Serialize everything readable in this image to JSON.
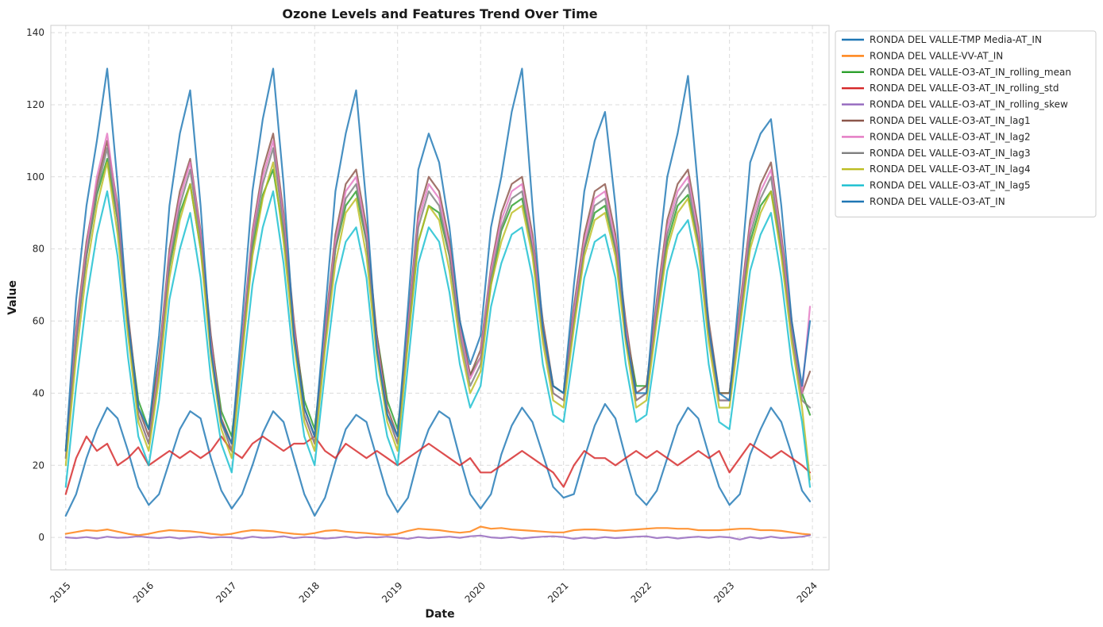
{
  "chart_data": {
    "type": "line",
    "title": "Ozone Levels and Features Trend Over Time",
    "xlabel": "Date",
    "ylabel": "Value",
    "xlim": [
      2014.82,
      2024.2
    ],
    "ylim": [
      -9,
      142
    ],
    "x_ticks": [
      2015,
      2016,
      2017,
      2018,
      2019,
      2020,
      2021,
      2022,
      2023,
      2024
    ],
    "x_tick_labels": [
      "2015",
      "2016",
      "2017",
      "2018",
      "2019",
      "2020",
      "2021",
      "2022",
      "2023",
      "2024"
    ],
    "y_ticks": [
      0,
      20,
      40,
      60,
      80,
      100,
      120,
      140
    ],
    "y_tick_labels": [
      "0",
      "20",
      "40",
      "60",
      "80",
      "100",
      "120",
      "140"
    ],
    "grid": true,
    "legend_position": "outside-top-right",
    "x": [
      2015.0,
      2015.125,
      2015.25,
      2015.375,
      2015.5,
      2015.625,
      2015.75,
      2015.875,
      2016.0,
      2016.125,
      2016.25,
      2016.375,
      2016.5,
      2016.625,
      2016.75,
      2016.875,
      2017.0,
      2017.125,
      2017.25,
      2017.375,
      2017.5,
      2017.625,
      2017.75,
      2017.875,
      2018.0,
      2018.125,
      2018.25,
      2018.375,
      2018.5,
      2018.625,
      2018.75,
      2018.875,
      2019.0,
      2019.125,
      2019.25,
      2019.375,
      2019.5,
      2019.625,
      2019.75,
      2019.875,
      2020.0,
      2020.125,
      2020.25,
      2020.375,
      2020.5,
      2020.625,
      2020.75,
      2020.875,
      2021.0,
      2021.125,
      2021.25,
      2021.375,
      2021.5,
      2021.625,
      2021.75,
      2021.875,
      2022.0,
      2022.125,
      2022.25,
      2022.375,
      2022.5,
      2022.625,
      2022.75,
      2022.875,
      2023.0,
      2023.125,
      2023.25,
      2023.375,
      2023.5,
      2023.625,
      2023.75,
      2023.875,
      2023.97
    ],
    "series": [
      {
        "name": "RONDA DEL VALLE-TMP Media-AT_IN",
        "color": "#1f77b4",
        "values": [
          6,
          12,
          22,
          30,
          36,
          33,
          24,
          14,
          9,
          12,
          21,
          30,
          35,
          33,
          22,
          13,
          8,
          12,
          20,
          29,
          35,
          32,
          22,
          12,
          6,
          11,
          21,
          30,
          34,
          32,
          22,
          12,
          7,
          11,
          22,
          30,
          35,
          33,
          22,
          12,
          8,
          12,
          23,
          31,
          36,
          32,
          23,
          14,
          11,
          12,
          22,
          31,
          37,
          33,
          22,
          12,
          9,
          13,
          22,
          31,
          36,
          33,
          23,
          14,
          9,
          12,
          23,
          30,
          36,
          32,
          23,
          13,
          10
        ]
      },
      {
        "name": "RONDA DEL VALLE-VV-AT_IN",
        "color": "#ff7f0e",
        "values": [
          1,
          1.5,
          2,
          1.8,
          2.2,
          1.6,
          1,
          0.6,
          1,
          1.6,
          2,
          1.8,
          1.7,
          1.4,
          1,
          0.7,
          1,
          1.6,
          2,
          1.9,
          1.7,
          1.3,
          1,
          0.8,
          1.2,
          1.8,
          2,
          1.6,
          1.4,
          1.2,
          0.9,
          0.7,
          1,
          1.8,
          2.4,
          2.2,
          2,
          1.6,
          1.3,
          1.6,
          3,
          2.4,
          2.6,
          2.2,
          2,
          1.8,
          1.6,
          1.4,
          1.4,
          2,
          2.2,
          2.2,
          2,
          1.8,
          2,
          2.2,
          2.4,
          2.6,
          2.6,
          2.4,
          2.4,
          2,
          2,
          2,
          2.2,
          2.4,
          2.4,
          2,
          2,
          1.8,
          1.4,
          1,
          0.8
        ]
      },
      {
        "name": "RONDA DEL VALLE-O3-AT_IN_rolling_mean",
        "color": "#2ca02c",
        "values": [
          24,
          55,
          78,
          95,
          105,
          88,
          60,
          38,
          30,
          50,
          75,
          90,
          98,
          80,
          55,
          35,
          28,
          52,
          80,
          95,
          102,
          84,
          58,
          38,
          30,
          55,
          80,
          92,
          96,
          82,
          56,
          38,
          30,
          55,
          82,
          92,
          90,
          78,
          58,
          45,
          50,
          70,
          85,
          92,
          94,
          80,
          58,
          42,
          40,
          60,
          80,
          90,
          92,
          80,
          58,
          42,
          42,
          62,
          82,
          92,
          95,
          82,
          58,
          40,
          40,
          60,
          82,
          92,
          96,
          80,
          58,
          40,
          34
        ]
      },
      {
        "name": "RONDA DEL VALLE-O3-AT_IN_rolling_std",
        "color": "#d62728",
        "values": [
          12,
          22,
          28,
          24,
          26,
          20,
          22,
          25,
          20,
          22,
          24,
          22,
          24,
          22,
          24,
          28,
          24,
          22,
          26,
          28,
          26,
          24,
          26,
          26,
          28,
          24,
          22,
          26,
          24,
          22,
          24,
          22,
          20,
          22,
          24,
          26,
          24,
          22,
          20,
          22,
          18,
          18,
          20,
          22,
          24,
          22,
          20,
          18,
          14,
          20,
          24,
          22,
          22,
          20,
          22,
          24,
          22,
          24,
          22,
          20,
          22,
          24,
          22,
          24,
          18,
          22,
          26,
          24,
          22,
          24,
          22,
          20,
          18
        ]
      },
      {
        "name": "RONDA DEL VALLE-O3-AT_IN_rolling_skew",
        "color": "#9467bd",
        "values": [
          0,
          -0.2,
          0.1,
          -0.3,
          0.2,
          -0.1,
          0,
          0.3,
          0,
          -0.2,
          0.1,
          -0.3,
          0,
          0.2,
          -0.1,
          0.1,
          0,
          -0.3,
          0.2,
          -0.1,
          0,
          0.3,
          -0.2,
          0.1,
          0,
          -0.3,
          -0.1,
          0.2,
          -0.2,
          0.1,
          0,
          0.2,
          -0.1,
          -0.4,
          0.1,
          -0.2,
          0,
          0.2,
          -0.1,
          0.3,
          0.5,
          0,
          -0.2,
          0.1,
          -0.3,
          0,
          0.2,
          0.3,
          0.1,
          -0.4,
          0,
          -0.3,
          0.1,
          -0.2,
          0,
          0.2,
          0.3,
          -0.2,
          0.1,
          -0.3,
          0,
          0.2,
          -0.1,
          0.2,
          0,
          -0.6,
          0.1,
          -0.3,
          0.2,
          -0.2,
          0,
          0.2,
          0.6
        ]
      },
      {
        "name": "RONDA DEL VALLE-O3-AT_IN_lag1",
        "color": "#8c564b",
        "values": [
          24,
          58,
          82,
          98,
          110,
          92,
          62,
          36,
          28,
          50,
          80,
          96,
          105,
          85,
          56,
          33,
          26,
          55,
          85,
          102,
          112,
          90,
          60,
          36,
          28,
          58,
          84,
          98,
          102,
          86,
          56,
          36,
          28,
          60,
          90,
          100,
          96,
          82,
          60,
          45,
          52,
          75,
          90,
          98,
          100,
          84,
          60,
          42,
          40,
          64,
          84,
          96,
          98,
          84,
          60,
          40,
          42,
          66,
          88,
          98,
          102,
          86,
          60,
          40,
          40,
          64,
          88,
          98,
          104,
          84,
          60,
          40,
          46
        ]
      },
      {
        "name": "RONDA DEL VALLE-O3-AT_IN_lag2",
        "color": "#e377c2",
        "values": [
          22,
          56,
          80,
          100,
          112,
          90,
          60,
          34,
          26,
          48,
          78,
          94,
          104,
          84,
          54,
          32,
          24,
          54,
          84,
          100,
          110,
          88,
          58,
          34,
          26,
          56,
          82,
          96,
          100,
          84,
          54,
          34,
          26,
          58,
          88,
          98,
          94,
          80,
          58,
          44,
          50,
          74,
          88,
          96,
          98,
          82,
          58,
          40,
          38,
          62,
          82,
          94,
          96,
          82,
          58,
          38,
          40,
          64,
          86,
          96,
          100,
          84,
          58,
          38,
          38,
          62,
          86,
          96,
          102,
          82,
          58,
          40,
          64
        ]
      },
      {
        "name": "RONDA DEL VALLE-O3-AT_IN_lag3",
        "color": "#7f7f7f",
        "values": [
          22,
          54,
          78,
          96,
          108,
          88,
          58,
          34,
          26,
          46,
          76,
          92,
          102,
          82,
          52,
          32,
          24,
          52,
          82,
          98,
          108,
          86,
          56,
          34,
          26,
          54,
          80,
          94,
          98,
          82,
          52,
          34,
          26,
          56,
          86,
          96,
          92,
          78,
          56,
          42,
          48,
          72,
          86,
          94,
          96,
          80,
          56,
          40,
          38,
          60,
          80,
          92,
          94,
          80,
          56,
          38,
          40,
          62,
          84,
          94,
          98,
          82,
          56,
          38,
          38,
          60,
          84,
          94,
          100,
          80,
          56,
          38,
          36
        ]
      },
      {
        "name": "RONDA DEL VALLE-O3-AT_IN_lag4",
        "color": "#bcbd22",
        "values": [
          20,
          50,
          74,
          92,
          104,
          84,
          56,
          32,
          24,
          44,
          72,
          88,
          98,
          80,
          50,
          30,
          22,
          50,
          78,
          94,
          104,
          82,
          54,
          32,
          24,
          52,
          76,
          90,
          94,
          78,
          50,
          32,
          24,
          54,
          82,
          92,
          88,
          74,
          54,
          40,
          46,
          70,
          82,
          90,
          92,
          78,
          54,
          38,
          36,
          58,
          78,
          88,
          90,
          78,
          54,
          36,
          38,
          60,
          80,
          90,
          94,
          80,
          54,
          36,
          36,
          58,
          80,
          90,
          96,
          78,
          54,
          36,
          16
        ]
      },
      {
        "name": "RONDA DEL VALLE-O3-AT_IN_lag5",
        "color": "#17becf",
        "values": [
          14,
          42,
          66,
          84,
          96,
          78,
          50,
          28,
          20,
          38,
          66,
          80,
          90,
          72,
          44,
          26,
          18,
          44,
          70,
          86,
          96,
          76,
          48,
          28,
          20,
          46,
          70,
          82,
          86,
          72,
          44,
          28,
          20,
          48,
          76,
          86,
          82,
          68,
          48,
          36,
          42,
          64,
          76,
          84,
          86,
          72,
          48,
          34,
          32,
          52,
          72,
          82,
          84,
          72,
          48,
          32,
          34,
          54,
          74,
          84,
          88,
          74,
          48,
          32,
          30,
          52,
          74,
          84,
          90,
          72,
          48,
          32,
          14
        ]
      },
      {
        "name": "RONDA DEL VALLE-O3-AT_IN",
        "color": "#1f77b4",
        "values": [
          24,
          66,
          92,
          110,
          130,
          98,
          60,
          36,
          30,
          56,
          92,
          112,
          124,
          92,
          52,
          32,
          26,
          60,
          96,
          116,
          130,
          98,
          56,
          36,
          28,
          62,
          96,
          112,
          124,
          92,
          52,
          34,
          28,
          64,
          102,
          112,
          104,
          86,
          60,
          48,
          56,
          86,
          100,
          118,
          130,
          92,
          58,
          42,
          40,
          70,
          96,
          110,
          118,
          92,
          56,
          40,
          40,
          74,
          100,
          112,
          128,
          96,
          58,
          40,
          38,
          70,
          104,
          112,
          116,
          92,
          60,
          42,
          60
        ]
      }
    ]
  }
}
